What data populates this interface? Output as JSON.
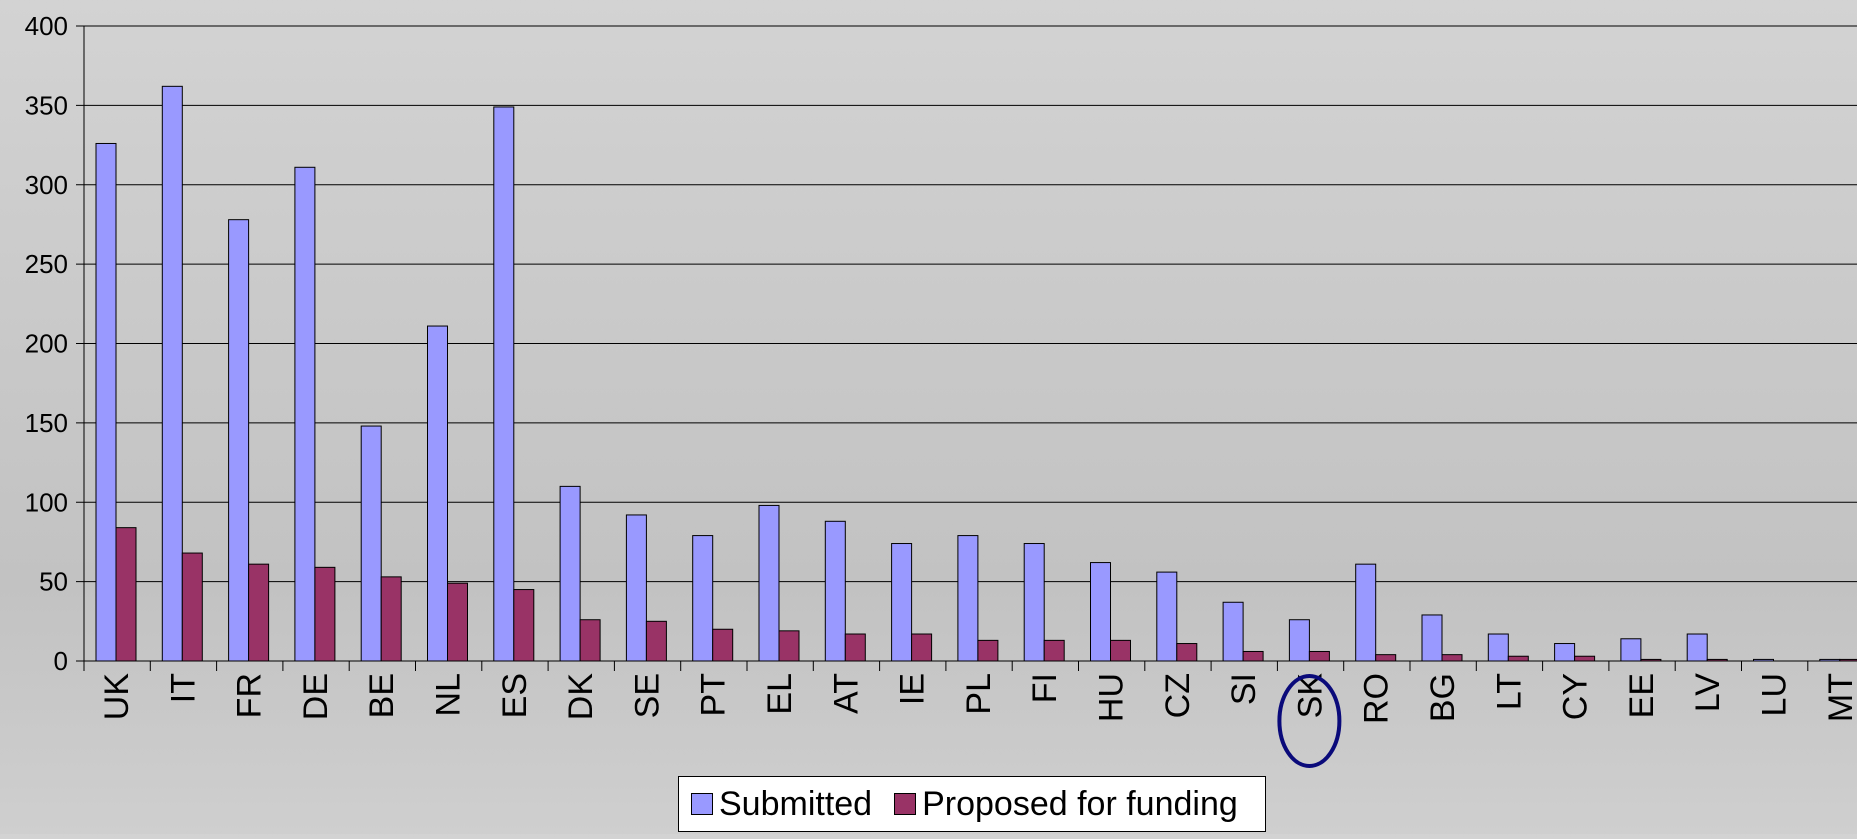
{
  "chart_data": {
    "type": "bar",
    "categories": [
      "UK",
      "IT",
      "FR",
      "DE",
      "BE",
      "NL",
      "ES",
      "DK",
      "SE",
      "PT",
      "EL",
      "AT",
      "IE",
      "PL",
      "FI",
      "HU",
      "CZ",
      "SI",
      "SK",
      "RO",
      "BG",
      "LT",
      "CY",
      "EE",
      "LV",
      "LU",
      "MT"
    ],
    "series": [
      {
        "name": "Submitted",
        "color": "#9999ff",
        "values": [
          326,
          362,
          278,
          311,
          148,
          211,
          349,
          110,
          92,
          79,
          98,
          88,
          74,
          79,
          74,
          62,
          56,
          37,
          26,
          61,
          29,
          17,
          11,
          14,
          17,
          1,
          1
        ]
      },
      {
        "name": "Proposed for funding",
        "color": "#993366",
        "values": [
          84,
          68,
          61,
          59,
          53,
          49,
          45,
          26,
          25,
          20,
          19,
          17,
          17,
          13,
          13,
          13,
          11,
          6,
          6,
          4,
          4,
          3,
          3,
          1,
          1,
          0,
          1
        ]
      }
    ],
    "ylim": [
      0,
      400
    ],
    "yticks": [
      "0",
      "50",
      "100",
      "150",
      "200",
      "250",
      "300",
      "350",
      "400"
    ],
    "grid": true,
    "legend": "bottom",
    "highlighted_category": "SK",
    "highlight_color": "#0a0a7a"
  }
}
